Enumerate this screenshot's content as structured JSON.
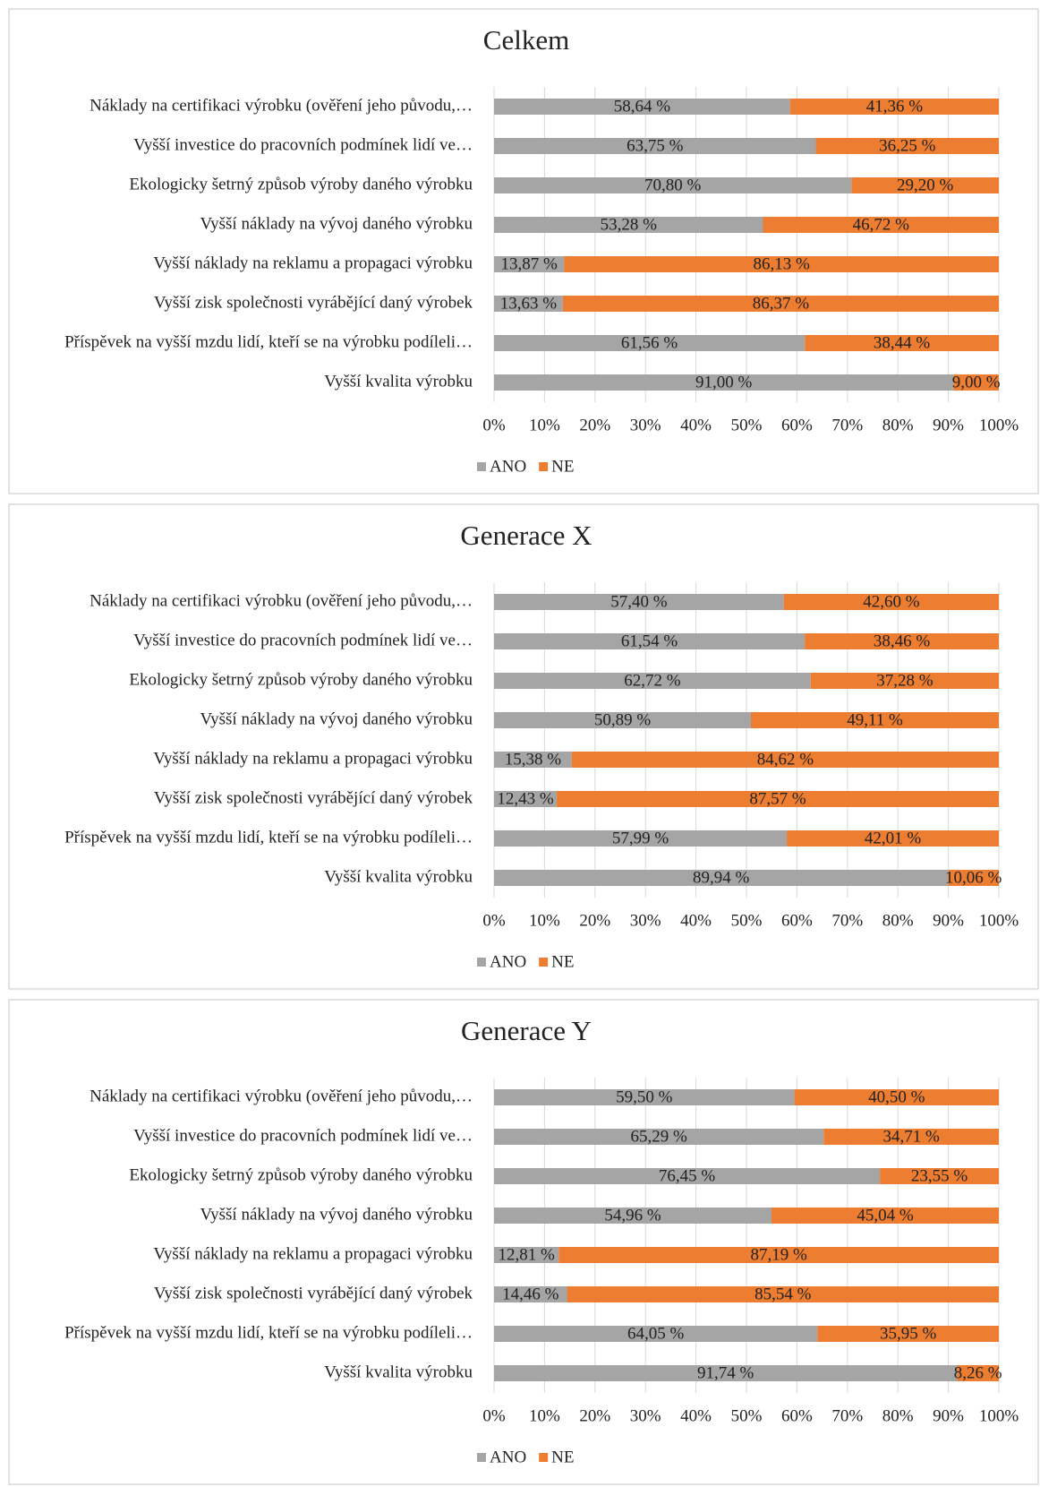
{
  "chart_data": [
    {
      "type": "stacked_bar_horizontal",
      "title": "Celkem",
      "categories": [
        "Náklady na certifikaci výrobku (ověření jeho původu,…",
        "Vyšší investice do pracovních podmínek lidí ve…",
        "Ekologicky šetrný způsob výroby daného výrobku",
        "Vyšší náklady na vývoj daného výrobku",
        "Vyšší náklady na reklamu a propagaci výrobku",
        "Vyšší zisk společnosti vyrábějící daný výrobek",
        "Příspěvek na vyšší mzdu lidí, kteří se na výrobku podíleli…",
        "Vyšší kvalita výrobku"
      ],
      "series": [
        {
          "name": "ANO",
          "color": "#a5a5a5",
          "values": [
            58.64,
            63.75,
            70.8,
            53.28,
            13.87,
            13.63,
            61.56,
            91.0
          ],
          "value_labels": [
            "58,64 %",
            "63,75 %",
            "70,80 %",
            "53,28 %",
            "13,87 %",
            "13,63 %",
            "61,56 %",
            "91,00 %"
          ]
        },
        {
          "name": "NE",
          "color": "#ed7d31",
          "values": [
            41.36,
            36.25,
            29.2,
            46.72,
            86.13,
            86.37,
            38.44,
            9.0
          ],
          "value_labels": [
            "41,36 %",
            "36,25 %",
            "29,20 %",
            "46,72 %",
            "86,13 %",
            "86,37 %",
            "38,44 %",
            "9,00 %"
          ]
        }
      ],
      "xlim": [
        0,
        100
      ],
      "xticks": [
        {
          "value": 0,
          "label": "0%"
        },
        {
          "value": 10,
          "label": "10%"
        },
        {
          "value": 20,
          "label": "20%"
        },
        {
          "value": 30,
          "label": "30%"
        },
        {
          "value": 40,
          "label": "40%"
        },
        {
          "value": 50,
          "label": "50%"
        },
        {
          "value": 60,
          "label": "60%"
        },
        {
          "value": 70,
          "label": "70%"
        },
        {
          "value": 80,
          "label": "80%"
        },
        {
          "value": 90,
          "label": "90%"
        },
        {
          "value": 100,
          "label": "100%"
        }
      ],
      "grid": true,
      "legend": "bottom"
    },
    {
      "type": "stacked_bar_horizontal",
      "title": "Generace X",
      "categories": [
        "Náklady na certifikaci výrobku (ověření jeho původu,…",
        "Vyšší investice do pracovních podmínek lidí ve…",
        "Ekologicky šetrný způsob výroby daného výrobku",
        "Vyšší náklady na vývoj daného výrobku",
        "Vyšší náklady na reklamu a propagaci výrobku",
        "Vyšší zisk společnosti vyrábějící daný výrobek",
        "Příspěvek na vyšší mzdu lidí, kteří se na výrobku podíleli…",
        "Vyšší kvalita výrobku"
      ],
      "series": [
        {
          "name": "ANO",
          "color": "#a5a5a5",
          "values": [
            57.4,
            61.54,
            62.72,
            50.89,
            15.38,
            12.43,
            57.99,
            89.94
          ],
          "value_labels": [
            "57,40 %",
            "61,54 %",
            "62,72 %",
            "50,89 %",
            "15,38 %",
            "12,43 %",
            "57,99 %",
            "89,94 %"
          ]
        },
        {
          "name": "NE",
          "color": "#ed7d31",
          "values": [
            42.6,
            38.46,
            37.28,
            49.11,
            84.62,
            87.57,
            42.01,
            10.06
          ],
          "value_labels": [
            "42,60 %",
            "38,46 %",
            "37,28 %",
            "49,11 %",
            "84,62 %",
            "87,57 %",
            "42,01 %",
            "10,06 %"
          ]
        }
      ],
      "xlim": [
        0,
        100
      ],
      "xticks": [
        {
          "value": 0,
          "label": "0%"
        },
        {
          "value": 10,
          "label": "10%"
        },
        {
          "value": 20,
          "label": "20%"
        },
        {
          "value": 30,
          "label": "30%"
        },
        {
          "value": 40,
          "label": "40%"
        },
        {
          "value": 50,
          "label": "50%"
        },
        {
          "value": 60,
          "label": "60%"
        },
        {
          "value": 70,
          "label": "70%"
        },
        {
          "value": 80,
          "label": "80%"
        },
        {
          "value": 90,
          "label": "90%"
        },
        {
          "value": 100,
          "label": "100%"
        }
      ],
      "grid": true,
      "legend": "bottom"
    },
    {
      "type": "stacked_bar_horizontal",
      "title": "Generace Y",
      "categories": [
        "Náklady na certifikaci výrobku (ověření jeho původu,…",
        "Vyšší investice do pracovních podmínek lidí ve…",
        "Ekologicky šetrný způsob výroby daného výrobku",
        "Vyšší náklady na vývoj daného výrobku",
        "Vyšší náklady na reklamu a propagaci výrobku",
        "Vyšší zisk společnosti vyrábějící daný výrobek",
        "Příspěvek na vyšší mzdu lidí, kteří se na výrobku podíleli…",
        "Vyšší kvalita výrobku"
      ],
      "series": [
        {
          "name": "ANO",
          "color": "#a5a5a5",
          "values": [
            59.5,
            65.29,
            76.45,
            54.96,
            12.81,
            14.46,
            64.05,
            91.74
          ],
          "value_labels": [
            "59,50 %",
            "65,29 %",
            "76,45 %",
            "54,96 %",
            "12,81 %",
            "14,46 %",
            "64,05 %",
            "91,74 %"
          ]
        },
        {
          "name": "NE",
          "color": "#ed7d31",
          "values": [
            40.5,
            34.71,
            23.55,
            45.04,
            87.19,
            85.54,
            35.95,
            8.26
          ],
          "value_labels": [
            "40,50 %",
            "34,71 %",
            "23,55 %",
            "45,04 %",
            "87,19 %",
            "85,54 %",
            "35,95 %",
            "8,26 %"
          ]
        }
      ],
      "xlim": [
        0,
        100
      ],
      "xticks": [
        {
          "value": 0,
          "label": "0%"
        },
        {
          "value": 10,
          "label": "10%"
        },
        {
          "value": 20,
          "label": "20%"
        },
        {
          "value": 30,
          "label": "30%"
        },
        {
          "value": 40,
          "label": "40%"
        },
        {
          "value": 50,
          "label": "50%"
        },
        {
          "value": 60,
          "label": "60%"
        },
        {
          "value": 70,
          "label": "70%"
        },
        {
          "value": 80,
          "label": "80%"
        },
        {
          "value": 90,
          "label": "90%"
        },
        {
          "value": 100,
          "label": "100%"
        }
      ],
      "grid": true,
      "legend": "bottom"
    }
  ]
}
